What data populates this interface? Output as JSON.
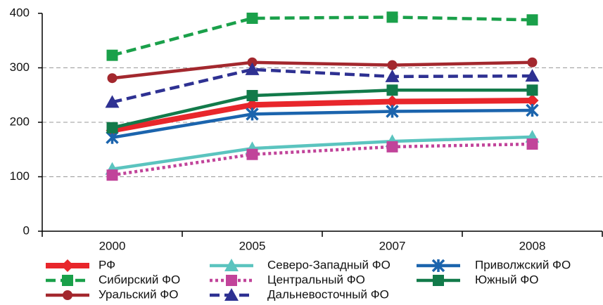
{
  "chart_data": {
    "type": "line",
    "categories": [
      "2000",
      "2005",
      "2007",
      "2008"
    ],
    "ylim": [
      0,
      400
    ],
    "yticks": [
      0,
      100,
      200,
      300,
      400
    ],
    "grid": true,
    "series": [
      {
        "name": "РФ",
        "color": "#e8262b",
        "marker": "diamond",
        "dash": "solid",
        "values": [
          185,
          232,
          238,
          240
        ]
      },
      {
        "name": "Сибирский ФО",
        "color": "#1aa04a",
        "marker": "square",
        "dash": "dashed",
        "values": [
          323,
          391,
          393,
          388
        ]
      },
      {
        "name": "Уральский ФО",
        "color": "#a3282e",
        "marker": "circle",
        "dash": "solid",
        "values": [
          281,
          310,
          305,
          310
        ]
      },
      {
        "name": "Северо-Западный ФО",
        "color": "#5bc4bf",
        "marker": "triangle",
        "dash": "solid",
        "values": [
          114,
          152,
          165,
          173
        ]
      },
      {
        "name": "Центральный ФО",
        "color": "#c1449a",
        "marker": "square",
        "dash": "dotted",
        "values": [
          103,
          141,
          155,
          160
        ]
      },
      {
        "name": "Дальневосточный ФО",
        "color": "#2e3192",
        "marker": "triangle",
        "dash": "dashed",
        "values": [
          237,
          297,
          284,
          285
        ]
      },
      {
        "name": "Приволжский ФО",
        "color": "#1b64ad",
        "marker": "star",
        "dash": "solid",
        "values": [
          172,
          215,
          220,
          222
        ]
      },
      {
        "name": "Южный ФО",
        "color": "#127a4a",
        "marker": "square",
        "dash": "solid",
        "values": [
          190,
          249,
          259,
          259
        ]
      }
    ]
  }
}
